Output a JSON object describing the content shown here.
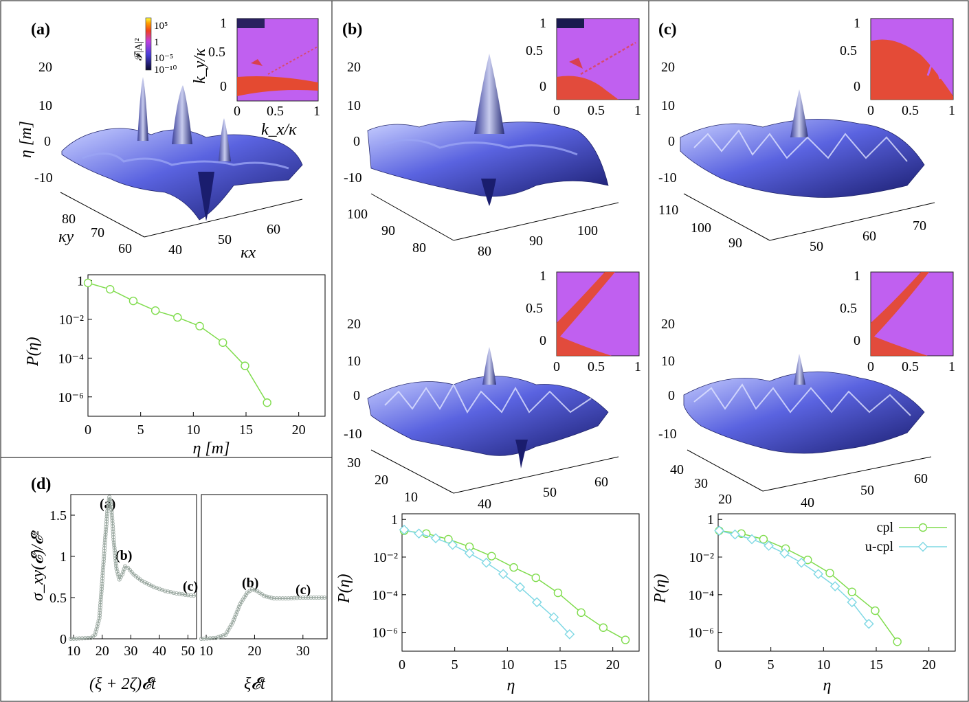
{
  "colors": {
    "cpl": "#7fdc4c",
    "ucpl": "#7fd8e4",
    "sigma": "#9aa8a0",
    "surface_dark": "#1a1d6e",
    "surface_mid": "#5a63e0",
    "surface_light": "#c9d0ff",
    "heat_bg": "#c060f0",
    "heat_hot": "#e8481c"
  },
  "panels": {
    "a": {
      "label": "(a)",
      "colorbar": {
        "title": "𝓕|A|²",
        "ticks": [
          "10⁵",
          "1",
          "10⁻⁵",
          "10⁻¹⁰"
        ]
      },
      "inset": {
        "ylabel": "k_y/κ",
        "xlabel": "k_x/κ",
        "yticks": [
          "1",
          "0.5",
          "0"
        ],
        "xticks": [
          "0",
          "0.5",
          "1"
        ]
      },
      "surface": {
        "zlabel": "η [m]",
        "zticks": [
          "20",
          "10",
          "0",
          "-10"
        ],
        "yticks": [
          "80",
          "70",
          "60"
        ],
        "ylabel": "κy",
        "xticks": [
          "40",
          "50",
          "60"
        ],
        "xlabel": "κx"
      }
    },
    "b": {
      "label": "(b)",
      "inset_top": {
        "yticks": [
          "1",
          "0.5",
          "0"
        ],
        "xticks": [
          "0",
          "0.5",
          "1"
        ]
      },
      "surface_top": {
        "zticks": [
          "20",
          "10",
          "0",
          "-10"
        ],
        "yticks": [
          "100",
          "90",
          "80"
        ],
        "xticks": [
          "80",
          "90",
          "100"
        ]
      },
      "inset_bottom": {
        "yticks": [
          "1",
          "0.5",
          "0"
        ],
        "xticks": [
          "0",
          "0.5",
          "1"
        ]
      },
      "surface_bottom": {
        "zticks": [
          "20",
          "10",
          "0",
          "-10"
        ],
        "yticks": [
          "30",
          "20",
          "10"
        ],
        "xticks": [
          "40",
          "50",
          "60"
        ]
      }
    },
    "c": {
      "label": "(c)",
      "inset_top": {
        "yticks": [
          "1",
          "0.5",
          "0"
        ],
        "xticks": [
          "0",
          "0.5",
          "1"
        ]
      },
      "surface_top": {
        "zticks": [
          "20",
          "10",
          "0",
          "-10"
        ],
        "yticks": [
          "110",
          "100",
          "90"
        ],
        "xticks": [
          "50",
          "60",
          "70"
        ]
      },
      "inset_bottom": {
        "yticks": [
          "1",
          "0.5",
          "0"
        ],
        "xticks": [
          "0",
          "0.5",
          "1"
        ]
      },
      "surface_bottom": {
        "zticks": [
          "20",
          "10",
          "0",
          "-10"
        ],
        "yticks": [
          "40",
          "30",
          "20"
        ],
        "xticks": [
          "40",
          "50",
          "60"
        ]
      }
    },
    "d": {
      "label": "(d)",
      "ylabel": "σ_xy(𝓔)/𝓔²",
      "left_xlabel": "(ξ + 2ζ)𝓔t",
      "right_xlabel": "ξ𝓔t",
      "annotations_left": [
        "(a)",
        "(b)",
        "(c)"
      ],
      "annotations_right": [
        "(b)",
        "(c)"
      ]
    }
  },
  "chart_data": [
    {
      "id": "pa",
      "type": "line",
      "title": "",
      "xlabel": "η [m]",
      "ylabel": "P(η)",
      "xlim": [
        0,
        22.5
      ],
      "ylim_log10": [
        -7,
        0.3
      ],
      "xticks": [
        0,
        5,
        10,
        15,
        20
      ],
      "yticks": [
        {
          "v": 0,
          "t": "1"
        },
        {
          "v": -2,
          "t": "10⁻²"
        },
        {
          "v": -4,
          "t": "10⁻⁴"
        },
        {
          "v": -6,
          "t": "10⁻⁶"
        }
      ],
      "series": [
        {
          "name": "cpl",
          "marker": "circle",
          "x": [
            0,
            2.1,
            4.3,
            6.4,
            8.5,
            10.6,
            12.8,
            14.9,
            17.0
          ],
          "y_log10": [
            -0.12,
            -0.45,
            -1.05,
            -1.55,
            -1.9,
            -2.35,
            -3.2,
            -4.4,
            -6.3
          ]
        }
      ]
    },
    {
      "id": "pb",
      "type": "line",
      "xlabel": "η",
      "ylabel": "P(η)",
      "xlim": [
        0,
        22.5
      ],
      "ylim_log10": [
        -7,
        0.3
      ],
      "xticks": [
        0,
        5,
        10,
        15,
        20
      ],
      "yticks": [
        {
          "v": 0,
          "t": "1"
        },
        {
          "v": -2,
          "t": "10⁻²"
        },
        {
          "v": -4,
          "t": "10⁻⁴"
        },
        {
          "v": -6,
          "t": "10⁻⁶"
        }
      ],
      "series": [
        {
          "name": "cpl",
          "marker": "circle",
          "x": [
            0.2,
            2.3,
            4.4,
            6.4,
            8.5,
            10.6,
            12.7,
            14.8,
            17.0,
            19.1,
            21.2
          ],
          "y_log10": [
            -0.6,
            -0.75,
            -1.05,
            -1.45,
            -1.95,
            -2.55,
            -3.1,
            -3.9,
            -4.95,
            -5.75,
            -6.4
          ]
        },
        {
          "name": "u-cpl",
          "marker": "diamond",
          "x": [
            0.2,
            1.6,
            3.2,
            4.8,
            6.4,
            8.0,
            9.6,
            11.2,
            12.8,
            14.4,
            15.9
          ],
          "y_log10": [
            -0.55,
            -0.75,
            -1.0,
            -1.35,
            -1.8,
            -2.3,
            -2.9,
            -3.6,
            -4.4,
            -5.2,
            -6.1
          ]
        }
      ]
    },
    {
      "id": "pc",
      "type": "line",
      "xlabel": "η",
      "ylabel": "P(η)",
      "xlim": [
        0,
        22.5
      ],
      "ylim_log10": [
        -7,
        0.3
      ],
      "xticks": [
        0,
        5,
        10,
        15,
        20
      ],
      "yticks": [
        {
          "v": 0,
          "t": "1"
        },
        {
          "v": -2,
          "t": "10⁻²"
        },
        {
          "v": -4,
          "t": "10⁻⁴"
        },
        {
          "v": -6,
          "t": "10⁻⁶"
        }
      ],
      "legend": {
        "position": "top-right",
        "entries": [
          "cpl",
          "u-cpl"
        ]
      },
      "series": [
        {
          "name": "cpl",
          "marker": "circle",
          "x": [
            0.1,
            2.2,
            4.3,
            6.4,
            8.5,
            10.6,
            12.7,
            14.9,
            17.0
          ],
          "y_log10": [
            -0.6,
            -0.75,
            -1.05,
            -1.55,
            -2.15,
            -2.85,
            -3.85,
            -4.85,
            -6.5
          ]
        },
        {
          "name": "u-cpl",
          "marker": "diamond",
          "x": [
            0.1,
            1.6,
            3.2,
            4.8,
            6.3,
            7.9,
            9.5,
            11.1,
            12.7,
            14.3
          ],
          "y_log10": [
            -0.6,
            -0.8,
            -1.05,
            -1.4,
            -1.8,
            -2.3,
            -2.9,
            -3.55,
            -4.4,
            -5.55
          ]
        }
      ]
    },
    {
      "id": "d-left",
      "type": "scatter",
      "xlabel": "(ξ + 2ζ)𝓔t",
      "ylabel": "σ_xy(𝓔)/𝓔²",
      "xlim": [
        9,
        53
      ],
      "ylim": [
        0,
        1.75
      ],
      "xticks": [
        10,
        20,
        30,
        40,
        50
      ],
      "yticks": [
        0,
        0.5,
        1,
        1.5
      ],
      "ytick_labels": [
        "0",
        "0.5",
        "1",
        "1.5"
      ],
      "curve": [
        [
          9,
          0
        ],
        [
          16,
          0.01
        ],
        [
          17.5,
          0.05
        ],
        [
          19,
          0.25
        ],
        [
          20,
          0.7
        ],
        [
          21,
          1.2
        ],
        [
          21.8,
          1.55
        ],
        [
          22.5,
          1.72
        ],
        [
          23.2,
          1.6
        ],
        [
          24,
          1.2
        ],
        [
          25,
          0.85
        ],
        [
          26,
          0.72
        ],
        [
          27,
          0.78
        ],
        [
          28,
          0.88
        ],
        [
          29,
          0.86
        ],
        [
          31,
          0.78
        ],
        [
          34,
          0.7
        ],
        [
          38,
          0.63
        ],
        [
          42,
          0.58
        ],
        [
          46,
          0.55
        ],
        [
          50,
          0.53
        ],
        [
          53,
          0.52
        ]
      ]
    },
    {
      "id": "d-right",
      "type": "scatter",
      "xlabel": "ξ𝓔t",
      "xlim": [
        9,
        35
      ],
      "ylim": [
        0,
        1.75
      ],
      "xticks": [
        10,
        20,
        30
      ],
      "curve": [
        [
          9,
          0
        ],
        [
          12,
          0.01
        ],
        [
          14,
          0.05
        ],
        [
          15.5,
          0.2
        ],
        [
          17,
          0.42
        ],
        [
          18.5,
          0.56
        ],
        [
          19.5,
          0.6
        ],
        [
          20.5,
          0.58
        ],
        [
          22,
          0.52
        ],
        [
          24,
          0.49
        ],
        [
          27,
          0.49
        ],
        [
          30,
          0.5
        ],
        [
          35,
          0.5
        ]
      ]
    }
  ]
}
